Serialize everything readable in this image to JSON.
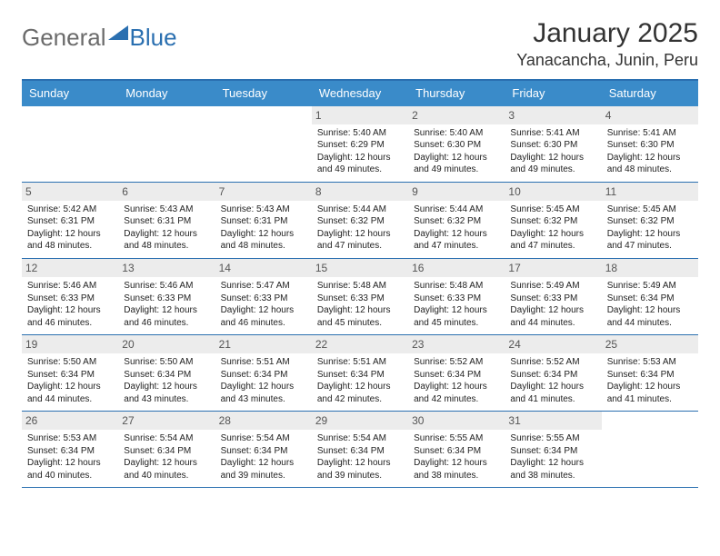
{
  "logo": {
    "text1": "General",
    "text2": "Blue"
  },
  "title": "January 2025",
  "location": "Yanacancha, Junin, Peru",
  "colors": {
    "header_bg": "#3a8bc9",
    "header_text": "#ffffff",
    "rule": "#2a6fb0",
    "daynum_bg": "#ececec",
    "daynum_text": "#555555",
    "body_text": "#222222",
    "logo_gray": "#6b6b6b",
    "logo_blue": "#2a6fb0"
  },
  "weekdays": [
    "Sunday",
    "Monday",
    "Tuesday",
    "Wednesday",
    "Thursday",
    "Friday",
    "Saturday"
  ],
  "weeks": [
    [
      {
        "n": "",
        "sr": "",
        "ss": "",
        "dl": ""
      },
      {
        "n": "",
        "sr": "",
        "ss": "",
        "dl": ""
      },
      {
        "n": "",
        "sr": "",
        "ss": "",
        "dl": ""
      },
      {
        "n": "1",
        "sr": "Sunrise: 5:40 AM",
        "ss": "Sunset: 6:29 PM",
        "dl": "Daylight: 12 hours and 49 minutes."
      },
      {
        "n": "2",
        "sr": "Sunrise: 5:40 AM",
        "ss": "Sunset: 6:30 PM",
        "dl": "Daylight: 12 hours and 49 minutes."
      },
      {
        "n": "3",
        "sr": "Sunrise: 5:41 AM",
        "ss": "Sunset: 6:30 PM",
        "dl": "Daylight: 12 hours and 49 minutes."
      },
      {
        "n": "4",
        "sr": "Sunrise: 5:41 AM",
        "ss": "Sunset: 6:30 PM",
        "dl": "Daylight: 12 hours and 48 minutes."
      }
    ],
    [
      {
        "n": "5",
        "sr": "Sunrise: 5:42 AM",
        "ss": "Sunset: 6:31 PM",
        "dl": "Daylight: 12 hours and 48 minutes."
      },
      {
        "n": "6",
        "sr": "Sunrise: 5:43 AM",
        "ss": "Sunset: 6:31 PM",
        "dl": "Daylight: 12 hours and 48 minutes."
      },
      {
        "n": "7",
        "sr": "Sunrise: 5:43 AM",
        "ss": "Sunset: 6:31 PM",
        "dl": "Daylight: 12 hours and 48 minutes."
      },
      {
        "n": "8",
        "sr": "Sunrise: 5:44 AM",
        "ss": "Sunset: 6:32 PM",
        "dl": "Daylight: 12 hours and 47 minutes."
      },
      {
        "n": "9",
        "sr": "Sunrise: 5:44 AM",
        "ss": "Sunset: 6:32 PM",
        "dl": "Daylight: 12 hours and 47 minutes."
      },
      {
        "n": "10",
        "sr": "Sunrise: 5:45 AM",
        "ss": "Sunset: 6:32 PM",
        "dl": "Daylight: 12 hours and 47 minutes."
      },
      {
        "n": "11",
        "sr": "Sunrise: 5:45 AM",
        "ss": "Sunset: 6:32 PM",
        "dl": "Daylight: 12 hours and 47 minutes."
      }
    ],
    [
      {
        "n": "12",
        "sr": "Sunrise: 5:46 AM",
        "ss": "Sunset: 6:33 PM",
        "dl": "Daylight: 12 hours and 46 minutes."
      },
      {
        "n": "13",
        "sr": "Sunrise: 5:46 AM",
        "ss": "Sunset: 6:33 PM",
        "dl": "Daylight: 12 hours and 46 minutes."
      },
      {
        "n": "14",
        "sr": "Sunrise: 5:47 AM",
        "ss": "Sunset: 6:33 PM",
        "dl": "Daylight: 12 hours and 46 minutes."
      },
      {
        "n": "15",
        "sr": "Sunrise: 5:48 AM",
        "ss": "Sunset: 6:33 PM",
        "dl": "Daylight: 12 hours and 45 minutes."
      },
      {
        "n": "16",
        "sr": "Sunrise: 5:48 AM",
        "ss": "Sunset: 6:33 PM",
        "dl": "Daylight: 12 hours and 45 minutes."
      },
      {
        "n": "17",
        "sr": "Sunrise: 5:49 AM",
        "ss": "Sunset: 6:33 PM",
        "dl": "Daylight: 12 hours and 44 minutes."
      },
      {
        "n": "18",
        "sr": "Sunrise: 5:49 AM",
        "ss": "Sunset: 6:34 PM",
        "dl": "Daylight: 12 hours and 44 minutes."
      }
    ],
    [
      {
        "n": "19",
        "sr": "Sunrise: 5:50 AM",
        "ss": "Sunset: 6:34 PM",
        "dl": "Daylight: 12 hours and 44 minutes."
      },
      {
        "n": "20",
        "sr": "Sunrise: 5:50 AM",
        "ss": "Sunset: 6:34 PM",
        "dl": "Daylight: 12 hours and 43 minutes."
      },
      {
        "n": "21",
        "sr": "Sunrise: 5:51 AM",
        "ss": "Sunset: 6:34 PM",
        "dl": "Daylight: 12 hours and 43 minutes."
      },
      {
        "n": "22",
        "sr": "Sunrise: 5:51 AM",
        "ss": "Sunset: 6:34 PM",
        "dl": "Daylight: 12 hours and 42 minutes."
      },
      {
        "n": "23",
        "sr": "Sunrise: 5:52 AM",
        "ss": "Sunset: 6:34 PM",
        "dl": "Daylight: 12 hours and 42 minutes."
      },
      {
        "n": "24",
        "sr": "Sunrise: 5:52 AM",
        "ss": "Sunset: 6:34 PM",
        "dl": "Daylight: 12 hours and 41 minutes."
      },
      {
        "n": "25",
        "sr": "Sunrise: 5:53 AM",
        "ss": "Sunset: 6:34 PM",
        "dl": "Daylight: 12 hours and 41 minutes."
      }
    ],
    [
      {
        "n": "26",
        "sr": "Sunrise: 5:53 AM",
        "ss": "Sunset: 6:34 PM",
        "dl": "Daylight: 12 hours and 40 minutes."
      },
      {
        "n": "27",
        "sr": "Sunrise: 5:54 AM",
        "ss": "Sunset: 6:34 PM",
        "dl": "Daylight: 12 hours and 40 minutes."
      },
      {
        "n": "28",
        "sr": "Sunrise: 5:54 AM",
        "ss": "Sunset: 6:34 PM",
        "dl": "Daylight: 12 hours and 39 minutes."
      },
      {
        "n": "29",
        "sr": "Sunrise: 5:54 AM",
        "ss": "Sunset: 6:34 PM",
        "dl": "Daylight: 12 hours and 39 minutes."
      },
      {
        "n": "30",
        "sr": "Sunrise: 5:55 AM",
        "ss": "Sunset: 6:34 PM",
        "dl": "Daylight: 12 hours and 38 minutes."
      },
      {
        "n": "31",
        "sr": "Sunrise: 5:55 AM",
        "ss": "Sunset: 6:34 PM",
        "dl": "Daylight: 12 hours and 38 minutes."
      },
      {
        "n": "",
        "sr": "",
        "ss": "",
        "dl": ""
      }
    ]
  ]
}
